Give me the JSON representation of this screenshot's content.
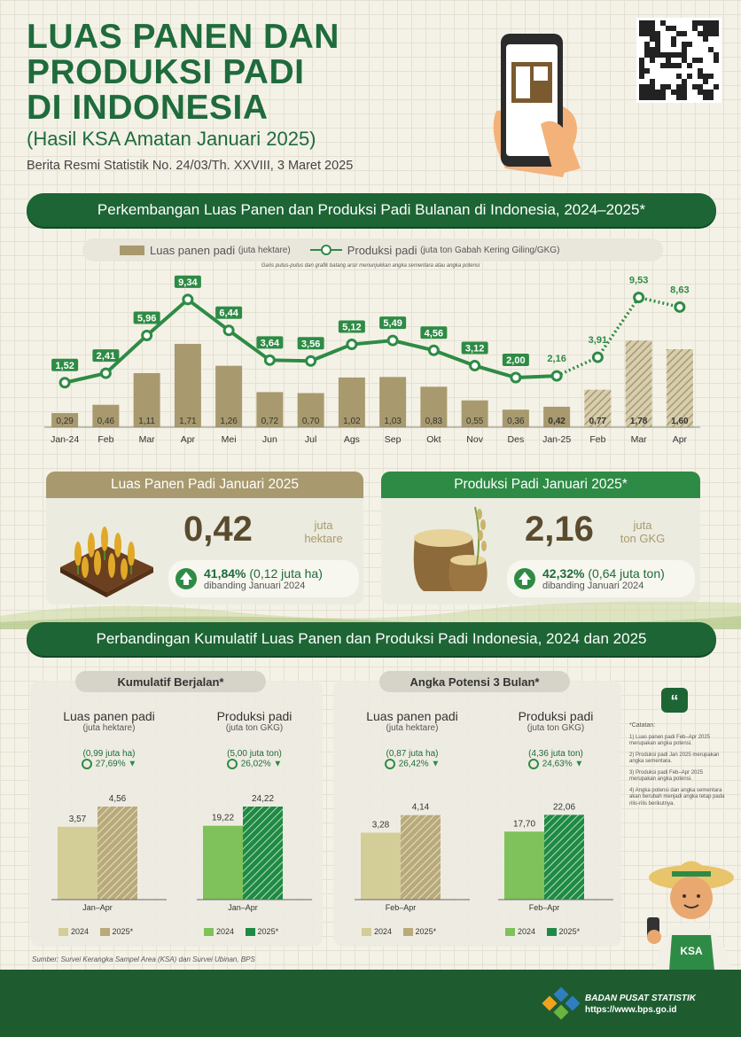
{
  "header": {
    "title_lines": [
      "LUAS PANEN DAN",
      "PRODUKSI PADI",
      "DI INDONESIA"
    ],
    "subtitle": "(Hasil KSA Amatan Januari 2025)",
    "release": "Berita Resmi Statistik No. 24/03/Th. XXVIII, 3 Maret 2025"
  },
  "section1": {
    "banner": "Perkembangan Luas Panen dan Produksi Padi Bulanan di Indonesia, 2024–2025*",
    "legend_bar": "Luas panen padi",
    "legend_bar_unit": "(juta hektare)",
    "legend_line": "Produksi padi",
    "legend_line_unit": "(juta ton Gabah Kering Giling/GKG)",
    "note": "Garis putus-putus dan grafik batang arsir menunjukkan angka sementara atau angka potensi"
  },
  "chart_data": {
    "type": "bar",
    "categories": [
      "Jan-24",
      "Feb",
      "Mar",
      "Apr",
      "Mei",
      "Jun",
      "Jul",
      "Ags",
      "Sep",
      "Okt",
      "Nov",
      "Des",
      "Jan-25",
      "Feb",
      "Mar",
      "Apr"
    ],
    "series": [
      {
        "name": "Luas panen padi",
        "type": "bar",
        "values": [
          0.29,
          0.46,
          1.11,
          1.71,
          1.26,
          0.72,
          0.7,
          1.02,
          1.03,
          0.83,
          0.55,
          0.36,
          0.42,
          0.77,
          1.78,
          1.6
        ],
        "labels": [
          "0,29",
          "0,46",
          "1,11",
          "1,71",
          "1,26",
          "0,72",
          "0,70",
          "1,02",
          "1,03",
          "0,83",
          "0,55",
          "0,36",
          "0,42",
          "0,77",
          "1,78",
          "1,60"
        ],
        "color": "#a89a6e"
      },
      {
        "name": "Produksi padi",
        "type": "line",
        "values": [
          1.52,
          2.41,
          5.96,
          9.34,
          6.44,
          3.64,
          3.56,
          5.12,
          5.49,
          4.56,
          3.12,
          2.0,
          2.16,
          3.91,
          9.53,
          8.63
        ],
        "labels": [
          "1,52",
          "2,41",
          "5,96",
          "9,34",
          "6,44",
          "3,64",
          "3,56",
          "5,12",
          "5,49",
          "4,56",
          "3,12",
          "2,00",
          "2,16",
          "3,91",
          "9,53",
          "8,63"
        ],
        "color": "#2e8b45"
      }
    ],
    "estimate_from_index": 13
  },
  "cards": {
    "area": {
      "title": "Luas Panen Padi Januari 2025",
      "value": "0,42",
      "unit1": "juta",
      "unit2": "hektare",
      "growth": "41,84%",
      "growth_abs": "(0,12 juta ha)",
      "compare": "dibanding Januari 2024",
      "color": "#a89a6e"
    },
    "prod": {
      "title": "Produksi Padi Januari 2025*",
      "value": "2,16",
      "unit1": "juta",
      "unit2": "ton GKG",
      "growth": "42,32%",
      "growth_abs": "(0,64 juta ton)",
      "compare": "dibanding Januari 2024",
      "color": "#2e8b45"
    }
  },
  "section2": {
    "banner": "Perbandingan Kumulatif Luas Panen dan Produksi Padi Indonesia, 2024 dan 2025",
    "panel_left": {
      "pill": "Kumulatif Berjalan*",
      "area": {
        "title": "Luas panen padi",
        "unit": "(juta hektare)",
        "change_abs": "(0,99 juta ha)",
        "change_pct": "27,69%",
        "v2024": "3,57",
        "v2025": "4,56",
        "n2024": 3.57,
        "n2025": 4.56,
        "period": "Jan–Apr"
      },
      "prod": {
        "title": "Produksi padi",
        "unit": "(juta ton GKG)",
        "change_abs": "(5,00 juta ton)",
        "change_pct": "26,02%",
        "v2024": "19,22",
        "v2025": "24,22",
        "n2024": 19.22,
        "n2025": 24.22,
        "period": "Jan–Apr"
      }
    },
    "panel_right": {
      "pill": "Angka Potensi 3 Bulan*",
      "area": {
        "title": "Luas panen padi",
        "unit": "(juta hektare)",
        "change_abs": "(0,87 juta ha)",
        "change_pct": "26,42%",
        "v2024": "3,28",
        "v2025": "4,14",
        "n2024": 3.28,
        "n2025": 4.14,
        "period": "Feb–Apr"
      },
      "prod": {
        "title": "Produksi padi",
        "unit": "(juta ton GKG)",
        "change_abs": "(4,36 juta ton)",
        "change_pct": "24,63%",
        "v2024": "17,70",
        "v2025": "22,06",
        "n2024": 17.7,
        "n2025": 22.06,
        "period": "Feb–Apr"
      }
    },
    "legend_2024": "2024",
    "legend_2025": "2025*"
  },
  "notes": {
    "heading": "*Catatan:",
    "items": [
      "1) Luas panen padi Feb–Apr 2025 merupakan angka potensi.",
      "2) Produksi padi Jan 2025 merupakan angka sementara.",
      "3) Produksi padi Feb–Apr 2025 merupakan angka potensi.",
      "4) Angka potensi dan angka sementara akan berubah menjadi angka tetap pada rilis-rilis berikutnya."
    ]
  },
  "footer": {
    "source": "Sumber: Survei Kerangka Sampel Area (KSA) dan Survei Ubinan, BPS",
    "org": "BADAN PUSAT STATISTIK",
    "url": "https://www.bps.go.id",
    "mascot_label": "KSA"
  },
  "colors": {
    "primary": "#1d6534",
    "bar": "#a89a6e",
    "line": "#2e8b45",
    "area_2024": "#d3cd98",
    "prod_2024": "#7fc15a"
  }
}
